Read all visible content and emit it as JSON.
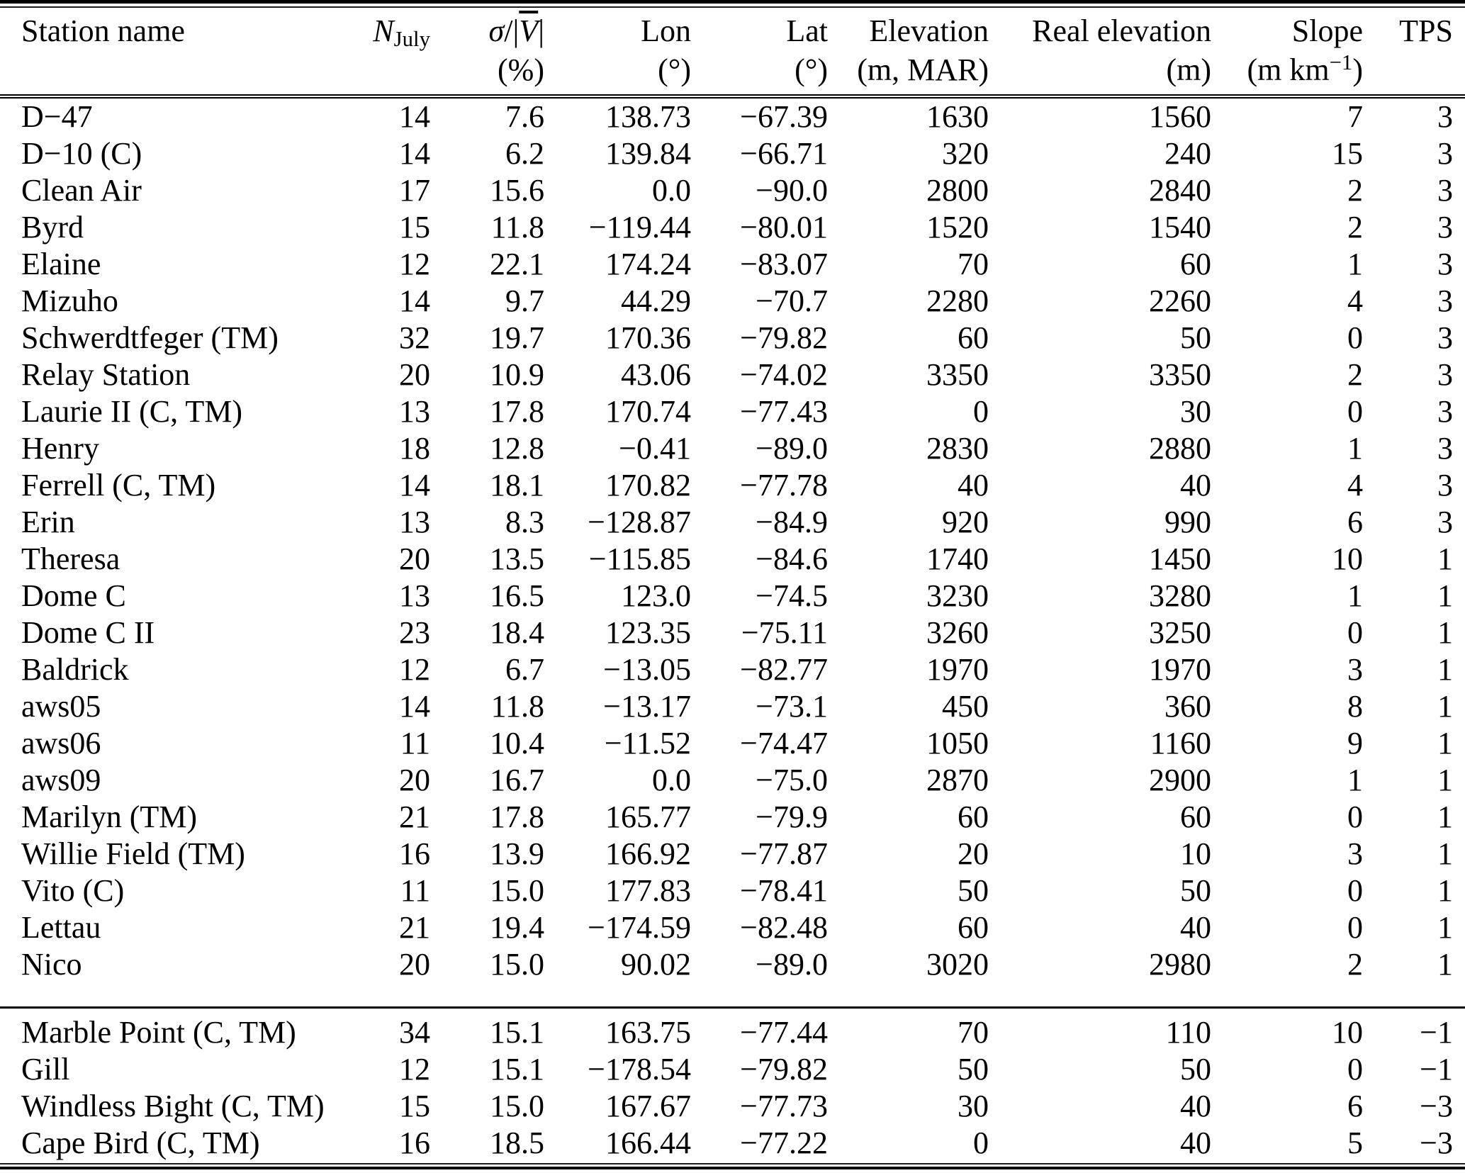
{
  "header": {
    "station": "Station name",
    "n_symbol": "N",
    "n_subscript": "July",
    "sigma_symbol": "σ",
    "sigma_divider": "/|",
    "sigma_v": "V",
    "sigma_close": "|",
    "sigma_unit": "(%)",
    "lon": "Lon",
    "lon_unit": "(°)",
    "lat": "Lat",
    "lat_unit": "(°)",
    "elevation": "Elevation",
    "elevation_unit": "(m, MAR)",
    "real_elevation": "Real elevation",
    "real_elevation_unit": "(m)",
    "slope": "Slope",
    "slope_unit_pre": "(m km",
    "slope_unit_sup": "−1",
    "slope_unit_post": ")",
    "tps": "TPS"
  },
  "table": {
    "column_keys": [
      "station",
      "n_july",
      "sigma_pct",
      "lon",
      "lat",
      "elevation_mar",
      "real_elevation_m",
      "slope",
      "tps"
    ],
    "sections": [
      {
        "name": "main",
        "rows": [
          [
            "D−47",
            "14",
            "7.6",
            "138.73",
            "−67.39",
            "1630",
            "1560",
            "7",
            "3"
          ],
          [
            "D−10 (C)",
            "14",
            "6.2",
            "139.84",
            "−66.71",
            "320",
            "240",
            "15",
            "3"
          ],
          [
            "Clean Air",
            "17",
            "15.6",
            "0.0",
            "−90.0",
            "2800",
            "2840",
            "2",
            "3"
          ],
          [
            "Byrd",
            "15",
            "11.8",
            "−119.44",
            "−80.01",
            "1520",
            "1540",
            "2",
            "3"
          ],
          [
            "Elaine",
            "12",
            "22.1",
            "174.24",
            "−83.07",
            "70",
            "60",
            "1",
            "3"
          ],
          [
            "Mizuho",
            "14",
            "9.7",
            "44.29",
            "−70.7",
            "2280",
            "2260",
            "4",
            "3"
          ],
          [
            "Schwerdtfeger (TM)",
            "32",
            "19.7",
            "170.36",
            "−79.82",
            "60",
            "50",
            "0",
            "3"
          ],
          [
            "Relay Station",
            "20",
            "10.9",
            "43.06",
            "−74.02",
            "3350",
            "3350",
            "2",
            "3"
          ],
          [
            "Laurie II (C, TM)",
            "13",
            "17.8",
            "170.74",
            "−77.43",
            "0",
            "30",
            "0",
            "3"
          ],
          [
            "Henry",
            "18",
            "12.8",
            "−0.41",
            "−89.0",
            "2830",
            "2880",
            "1",
            "3"
          ],
          [
            "Ferrell (C, TM)",
            "14",
            "18.1",
            "170.82",
            "−77.78",
            "40",
            "40",
            "4",
            "3"
          ],
          [
            "Erin",
            "13",
            "8.3",
            "−128.87",
            "−84.9",
            "920",
            "990",
            "6",
            "3"
          ],
          [
            "Theresa",
            "20",
            "13.5",
            "−115.85",
            "−84.6",
            "1740",
            "1450",
            "10",
            "1"
          ],
          [
            "Dome C",
            "13",
            "16.5",
            "123.0",
            "−74.5",
            "3230",
            "3280",
            "1",
            "1"
          ],
          [
            "Dome C II",
            "23",
            "18.4",
            "123.35",
            "−75.11",
            "3260",
            "3250",
            "0",
            "1"
          ],
          [
            "Baldrick",
            "12",
            "6.7",
            "−13.05",
            "−82.77",
            "1970",
            "1970",
            "3",
            "1"
          ],
          [
            "aws05",
            "14",
            "11.8",
            "−13.17",
            "−73.1",
            "450",
            "360",
            "8",
            "1"
          ],
          [
            "aws06",
            "11",
            "10.4",
            "−11.52",
            "−74.47",
            "1050",
            "1160",
            "9",
            "1"
          ],
          [
            "aws09",
            "20",
            "16.7",
            "0.0",
            "−75.0",
            "2870",
            "2900",
            "1",
            "1"
          ],
          [
            "Marilyn (TM)",
            "21",
            "17.8",
            "165.77",
            "−79.9",
            "60",
            "60",
            "0",
            "1"
          ],
          [
            "Willie Field (TM)",
            "16",
            "13.9",
            "166.92",
            "−77.87",
            "20",
            "10",
            "3",
            "1"
          ],
          [
            "Vito (C)",
            "11",
            "15.0",
            "177.83",
            "−78.41",
            "50",
            "50",
            "0",
            "1"
          ],
          [
            "Lettau",
            "21",
            "19.4",
            "−174.59",
            "−82.48",
            "60",
            "40",
            "0",
            "1"
          ],
          [
            "Nico",
            "20",
            "15.0",
            "90.02",
            "−89.0",
            "3020",
            "2980",
            "2",
            "1"
          ]
        ]
      },
      {
        "name": "secondary",
        "rows": [
          [
            "Marble Point (C, TM)",
            "34",
            "15.1",
            "163.75",
            "−77.44",
            "70",
            "110",
            "10",
            "−1"
          ],
          [
            "Gill",
            "12",
            "15.1",
            "−178.54",
            "−79.82",
            "50",
            "50",
            "0",
            "−1"
          ],
          [
            "Windless Bight (C, TM)",
            "15",
            "15.0",
            "167.67",
            "−77.73",
            "30",
            "40",
            "6",
            "−3"
          ],
          [
            "Cape Bird (C, TM)",
            "16",
            "18.5",
            "166.44",
            "−77.22",
            "0",
            "40",
            "5",
            "−3"
          ]
        ]
      }
    ]
  }
}
